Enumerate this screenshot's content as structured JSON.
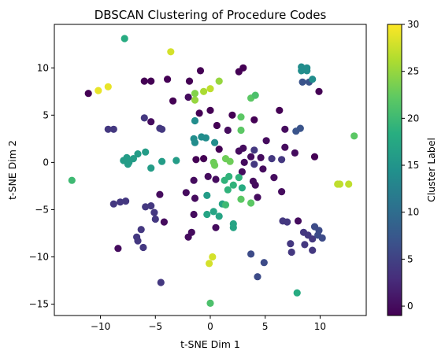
{
  "chart_data": {
    "type": "scatter",
    "title": "DBSCAN Clustering of Procedure Codes",
    "xlabel": "t-SNE Dim 1",
    "ylabel": "t-SNE Dim 2",
    "xlim": [
      -14.2,
      14.2
    ],
    "ylim": [
      -16.2,
      14.6
    ],
    "xticks": [
      -10,
      -5,
      0,
      5,
      10
    ],
    "yticks": [
      -15,
      -10,
      -5,
      0,
      5,
      10
    ],
    "grid": false,
    "colorbar": {
      "label": "Cluster Label",
      "range": [
        -1,
        30
      ],
      "ticks": [
        0,
        5,
        10,
        15,
        20,
        25,
        30
      ],
      "colormap": "viridis"
    },
    "points": [
      {
        "x": -7.8,
        "y": 13.1,
        "c": 18
      },
      {
        "x": -3.6,
        "y": 11.7,
        "c": 28
      },
      {
        "x": -11.1,
        "y": 7.3,
        "c": -1
      },
      {
        "x": -10.2,
        "y": 7.6,
        "c": 29
      },
      {
        "x": -9.3,
        "y": 8.0,
        "c": 29
      },
      {
        "x": -6.0,
        "y": 8.6,
        "c": -1
      },
      {
        "x": -5.4,
        "y": 8.6,
        "c": -1
      },
      {
        "x": -3.9,
        "y": 8.8,
        "c": -1
      },
      {
        "x": -3.4,
        "y": 6.5,
        "c": -1
      },
      {
        "x": -2.0,
        "y": 6.9,
        "c": 0
      },
      {
        "x": -1.9,
        "y": 8.6,
        "c": -1
      },
      {
        "x": -1.4,
        "y": 6.6,
        "c": 25
      },
      {
        "x": -1.4,
        "y": 7.3,
        "c": 24
      },
      {
        "x": -1.0,
        "y": 5.2,
        "c": -1
      },
      {
        "x": -0.9,
        "y": 9.7,
        "c": -1
      },
      {
        "x": -0.6,
        "y": 7.5,
        "c": 26
      },
      {
        "x": 0.0,
        "y": 7.8,
        "c": 27
      },
      {
        "x": 0.8,
        "y": 8.6,
        "c": 25
      },
      {
        "x": 2.6,
        "y": 9.6,
        "c": -1
      },
      {
        "x": 3.0,
        "y": 10.0,
        "c": -1
      },
      {
        "x": 3.7,
        "y": 6.8,
        "c": 22
      },
      {
        "x": 4.1,
        "y": 7.1,
        "c": 21
      },
      {
        "x": 0.0,
        "y": 5.5,
        "c": -1
      },
      {
        "x": 2.0,
        "y": 5.0,
        "c": -1
      },
      {
        "x": 2.8,
        "y": 4.8,
        "c": 22
      },
      {
        "x": 2.8,
        "y": 3.4,
        "c": 22
      },
      {
        "x": 0.6,
        "y": 3.9,
        "c": -1
      },
      {
        "x": 1.6,
        "y": 3.4,
        "c": 0
      },
      {
        "x": 4.0,
        "y": 4.5,
        "c": -1
      },
      {
        "x": 6.3,
        "y": 5.5,
        "c": -1
      },
      {
        "x": 6.8,
        "y": 3.5,
        "c": 0
      },
      {
        "x": 8.4,
        "y": 8.5,
        "c": 7
      },
      {
        "x": 9.0,
        "y": 8.5,
        "c": 7
      },
      {
        "x": 8.3,
        "y": 10.1,
        "c": 14
      },
      {
        "x": 8.8,
        "y": 10.0,
        "c": 14
      },
      {
        "x": 8.8,
        "y": 9.7,
        "c": 14
      },
      {
        "x": 8.3,
        "y": 9.7,
        "c": 14
      },
      {
        "x": 9.3,
        "y": 8.8,
        "c": 14
      },
      {
        "x": 9.9,
        "y": 7.5,
        "c": -1
      },
      {
        "x": -9.3,
        "y": 3.5,
        "c": 4
      },
      {
        "x": -8.8,
        "y": 3.5,
        "c": 4
      },
      {
        "x": -6.0,
        "y": 4.7,
        "c": 4
      },
      {
        "x": -5.4,
        "y": 4.3,
        "c": 0
      },
      {
        "x": -4.6,
        "y": 3.6,
        "c": 4
      },
      {
        "x": -4.4,
        "y": 3.5,
        "c": 4
      },
      {
        "x": -1.4,
        "y": 4.4,
        "c": 14
      },
      {
        "x": -1.5,
        "y": 2.5,
        "c": 14
      },
      {
        "x": -1.4,
        "y": 2.1,
        "c": 14
      },
      {
        "x": -0.8,
        "y": 2.7,
        "c": 14
      },
      {
        "x": -0.4,
        "y": 2.6,
        "c": 14
      },
      {
        "x": 0.4,
        "y": 2.1,
        "c": 14
      },
      {
        "x": 0.8,
        "y": 1.4,
        "c": -1
      },
      {
        "x": 2.6,
        "y": 1.2,
        "c": 0
      },
      {
        "x": 3.0,
        "y": 1.5,
        "c": 0
      },
      {
        "x": 4.0,
        "y": 1.3,
        "c": 4
      },
      {
        "x": 5.1,
        "y": 2.3,
        "c": 0
      },
      {
        "x": 6.8,
        "y": 1.6,
        "c": 0
      },
      {
        "x": 7.7,
        "y": 1.0,
        "c": 0
      },
      {
        "x": 7.8,
        "y": 3.3,
        "c": 7
      },
      {
        "x": 8.2,
        "y": 3.6,
        "c": 7
      },
      {
        "x": 9.5,
        "y": 0.6,
        "c": -1
      },
      {
        "x": -7.9,
        "y": 0.2,
        "c": 16
      },
      {
        "x": -7.6,
        "y": 0.5,
        "c": 16
      },
      {
        "x": -7.4,
        "y": 0.0,
        "c": 16
      },
      {
        "x": -7.0,
        "y": 0.4,
        "c": 16
      },
      {
        "x": -6.6,
        "y": 0.9,
        "c": 16
      },
      {
        "x": -5.9,
        "y": 1.1,
        "c": 16
      },
      {
        "x": -5.4,
        "y": -0.6,
        "c": 16
      },
      {
        "x": -4.4,
        "y": 0.1,
        "c": 16
      },
      {
        "x": -3.1,
        "y": 0.2,
        "c": 16
      },
      {
        "x": -7.5,
        "y": -0.2,
        "c": 16
      },
      {
        "x": -1.3,
        "y": 0.3,
        "c": -1
      },
      {
        "x": -0.6,
        "y": 0.4,
        "c": -1
      },
      {
        "x": 0.3,
        "y": 0.0,
        "c": 23
      },
      {
        "x": 0.4,
        "y": -0.3,
        "c": 23
      },
      {
        "x": 1.4,
        "y": 0.4,
        "c": 23
      },
      {
        "x": 1.8,
        "y": 0.1,
        "c": 23
      },
      {
        "x": 3.1,
        "y": 0.0,
        "c": 0
      },
      {
        "x": 3.7,
        "y": 0.6,
        "c": 0
      },
      {
        "x": 4.6,
        "y": 0.5,
        "c": 0
      },
      {
        "x": 5.6,
        "y": 0.4,
        "c": 4
      },
      {
        "x": 6.5,
        "y": 0.3,
        "c": 4
      },
      {
        "x": 4.0,
        "y": -0.2,
        "c": 4
      },
      {
        "x": 4.8,
        "y": -0.7,
        "c": 0
      },
      {
        "x": 2.9,
        "y": -1.0,
        "c": 0
      },
      {
        "x": 0.5,
        "y": -1.8,
        "c": 0
      },
      {
        "x": -0.2,
        "y": -1.5,
        "c": 0
      },
      {
        "x": -1.5,
        "y": -1.9,
        "c": 0
      },
      {
        "x": -2.2,
        "y": -3.2,
        "c": 0
      },
      {
        "x": -1.4,
        "y": -3.8,
        "c": 0
      },
      {
        "x": -0.3,
        "y": -3.5,
        "c": 16
      },
      {
        "x": 1.3,
        "y": -1.9,
        "c": 19
      },
      {
        "x": 1.7,
        "y": -1.5,
        "c": 19
      },
      {
        "x": 2.6,
        "y": -1.6,
        "c": 19
      },
      {
        "x": 1.6,
        "y": -2.9,
        "c": 19
      },
      {
        "x": 2.1,
        "y": -2.4,
        "c": 19
      },
      {
        "x": 2.9,
        "y": -2.7,
        "c": 18
      },
      {
        "x": 3.9,
        "y": -2.0,
        "c": 0
      },
      {
        "x": 4.1,
        "y": -2.4,
        "c": 0
      },
      {
        "x": 4.3,
        "y": -3.7,
        "c": 0
      },
      {
        "x": 5.8,
        "y": -1.6,
        "c": 0
      },
      {
        "x": 6.5,
        "y": -3.1,
        "c": 0
      },
      {
        "x": 2.8,
        "y": -3.9,
        "c": 22
      },
      {
        "x": 3.7,
        "y": -4.3,
        "c": 22
      },
      {
        "x": -12.6,
        "y": -1.9,
        "c": 20
      },
      {
        "x": -8.8,
        "y": -4.4,
        "c": 4
      },
      {
        "x": -8.2,
        "y": -4.2,
        "c": 4
      },
      {
        "x": -7.7,
        "y": -4.1,
        "c": 4
      },
      {
        "x": -5.9,
        "y": -4.7,
        "c": 4
      },
      {
        "x": -5.4,
        "y": -4.6,
        "c": 4
      },
      {
        "x": -4.6,
        "y": -3.4,
        "c": 0
      },
      {
        "x": -5.1,
        "y": -5.3,
        "c": 4
      },
      {
        "x": -5.0,
        "y": -6.0,
        "c": 4
      },
      {
        "x": -4.2,
        "y": -6.3,
        "c": 0
      },
      {
        "x": -1.5,
        "y": -5.5,
        "c": 0
      },
      {
        "x": -0.3,
        "y": -5.5,
        "c": 17
      },
      {
        "x": 0.3,
        "y": -5.2,
        "c": 17
      },
      {
        "x": 0.8,
        "y": -5.7,
        "c": 17
      },
      {
        "x": 1.1,
        "y": -4.4,
        "c": 17
      },
      {
        "x": 1.4,
        "y": -4.5,
        "c": 20
      },
      {
        "x": 2.1,
        "y": -6.5,
        "c": 17
      },
      {
        "x": 2.1,
        "y": -6.9,
        "c": 17
      },
      {
        "x": 0.5,
        "y": -6.9,
        "c": 0
      },
      {
        "x": -1.7,
        "y": -7.4,
        "c": 0
      },
      {
        "x": -2.0,
        "y": -7.9,
        "c": 0
      },
      {
        "x": -6.3,
        "y": -7.1,
        "c": 4
      },
      {
        "x": -6.7,
        "y": -7.9,
        "c": 4
      },
      {
        "x": -6.6,
        "y": -8.3,
        "c": 4
      },
      {
        "x": -6.1,
        "y": -9.0,
        "c": 4
      },
      {
        "x": -8.4,
        "y": -9.1,
        "c": 0
      },
      {
        "x": -4.5,
        "y": -12.7,
        "c": 4
      },
      {
        "x": 6.6,
        "y": -6.2,
        "c": 4
      },
      {
        "x": 7.0,
        "y": -6.3,
        "c": 4
      },
      {
        "x": 8.0,
        "y": -6.2,
        "c": 0
      },
      {
        "x": 7.3,
        "y": -8.6,
        "c": 4
      },
      {
        "x": 7.4,
        "y": -9.5,
        "c": 4
      },
      {
        "x": 8.5,
        "y": -7.4,
        "c": 4
      },
      {
        "x": 8.9,
        "y": -7.7,
        "c": 4
      },
      {
        "x": 8.6,
        "y": -8.7,
        "c": 4
      },
      {
        "x": 9.3,
        "y": -8.1,
        "c": 4
      },
      {
        "x": 9.5,
        "y": -6.8,
        "c": 6
      },
      {
        "x": 9.9,
        "y": -7.2,
        "c": 6
      },
      {
        "x": 9.8,
        "y": -7.7,
        "c": 6
      },
      {
        "x": 10.2,
        "y": -8.0,
        "c": 6
      },
      {
        "x": 9.3,
        "y": -9.3,
        "c": 4
      },
      {
        "x": 3.7,
        "y": -9.7,
        "c": 6
      },
      {
        "x": 4.9,
        "y": -10.6,
        "c": 6
      },
      {
        "x": 4.3,
        "y": -12.1,
        "c": 6
      },
      {
        "x": 0.2,
        "y": -10.0,
        "c": 28
      },
      {
        "x": -0.1,
        "y": -10.7,
        "c": 28
      },
      {
        "x": 11.6,
        "y": -2.3,
        "c": 27
      },
      {
        "x": 11.8,
        "y": -2.3,
        "c": 27
      },
      {
        "x": 12.6,
        "y": -2.3,
        "c": 27
      },
      {
        "x": 13.1,
        "y": 2.8,
        "c": 22
      },
      {
        "x": 0.0,
        "y": -14.9,
        "c": 21
      },
      {
        "x": 7.9,
        "y": -13.8,
        "c": 18
      }
    ]
  }
}
